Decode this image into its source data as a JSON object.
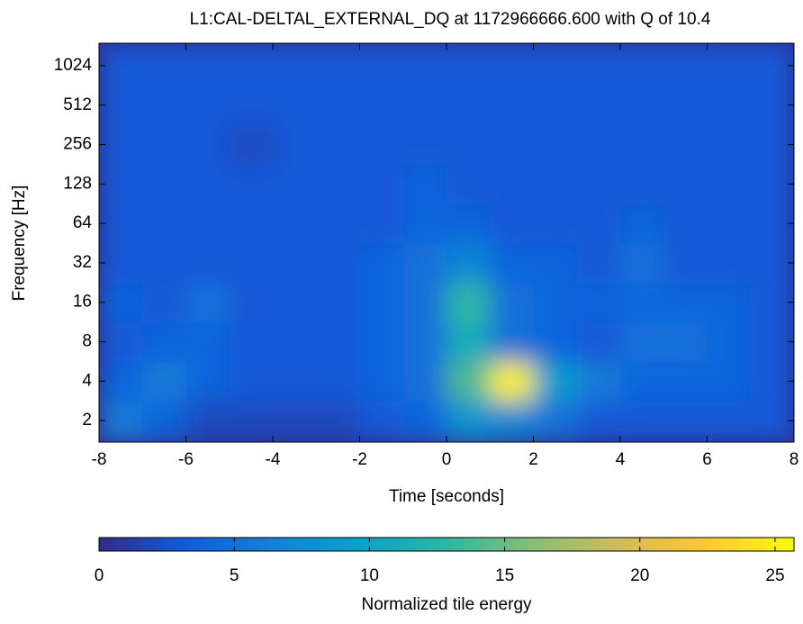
{
  "chart_data": {
    "type": "heatmap",
    "title": "L1:CAL-DELTAL_EXTERNAL_DQ at 1172966666.600 with Q of 10.4",
    "x_label": "Time [seconds]",
    "y_label": "Frequency [Hz]",
    "colorbar_label": "Normalized tile energy",
    "xlim": [
      -8,
      8
    ],
    "xticks": [
      -8,
      -6,
      -4,
      -2,
      0,
      2,
      4,
      6,
      8
    ],
    "ylim": [
      1.37,
      1520
    ],
    "yticks": [
      2,
      4,
      8,
      16,
      32,
      64,
      128,
      256,
      512,
      1024
    ],
    "log_y": true,
    "x_bins": [
      -8,
      -7,
      -6,
      -5,
      -4,
      -3,
      -2,
      -1,
      0,
      1,
      2,
      3,
      4,
      5,
      6,
      7,
      8
    ],
    "y_bins": [
      1.37,
      2.83,
      5.66,
      11.3,
      22.6,
      45.3,
      90.5,
      181,
      362,
      724,
      1520
    ],
    "values": [
      [
        6,
        4,
        2,
        2,
        2,
        2,
        3,
        4,
        8,
        7,
        5,
        3,
        3,
        3,
        3,
        3
      ],
      [
        4,
        6,
        4,
        3,
        3,
        3,
        4,
        5,
        14,
        25,
        9,
        6,
        4,
        4,
        4,
        3
      ],
      [
        3,
        4,
        4,
        3,
        3,
        3,
        4,
        5,
        11,
        5,
        4,
        3,
        5,
        5,
        4,
        3
      ],
      [
        4,
        3,
        5,
        3,
        3,
        3,
        4,
        5,
        13,
        5,
        4,
        4,
        4,
        4,
        4,
        3
      ],
      [
        3,
        3,
        3,
        3,
        3,
        3,
        4,
        5,
        7,
        4,
        4,
        3,
        5,
        3,
        3,
        3
      ],
      [
        3,
        3,
        3,
        3,
        3,
        3,
        3,
        4,
        4,
        3,
        3,
        3,
        4,
        3,
        3,
        3
      ],
      [
        3,
        3,
        3,
        3,
        3,
        3,
        3,
        4,
        3,
        3,
        3,
        3,
        3,
        3,
        3,
        3
      ],
      [
        3,
        3,
        3,
        2,
        3,
        3,
        3,
        3,
        3,
        3,
        3,
        3,
        3,
        3,
        3,
        3
      ],
      [
        3,
        3,
        3,
        3,
        3,
        3,
        3,
        3,
        3,
        3,
        3,
        3,
        3,
        3,
        3,
        3
      ],
      [
        3,
        3,
        3,
        3,
        3,
        3,
        3,
        3,
        3,
        3,
        3,
        3,
        3,
        3,
        3,
        3
      ]
    ],
    "clim": [
      0,
      25.7
    ],
    "cticks": [
      0,
      5,
      10,
      15,
      20,
      25
    ],
    "colormap": [
      "#352a87",
      "#0f5cdd",
      "#1481d6",
      "#06a4ca",
      "#2eb7a4",
      "#87bf77",
      "#d1bb59",
      "#fec832",
      "#f9fb0e"
    ]
  }
}
